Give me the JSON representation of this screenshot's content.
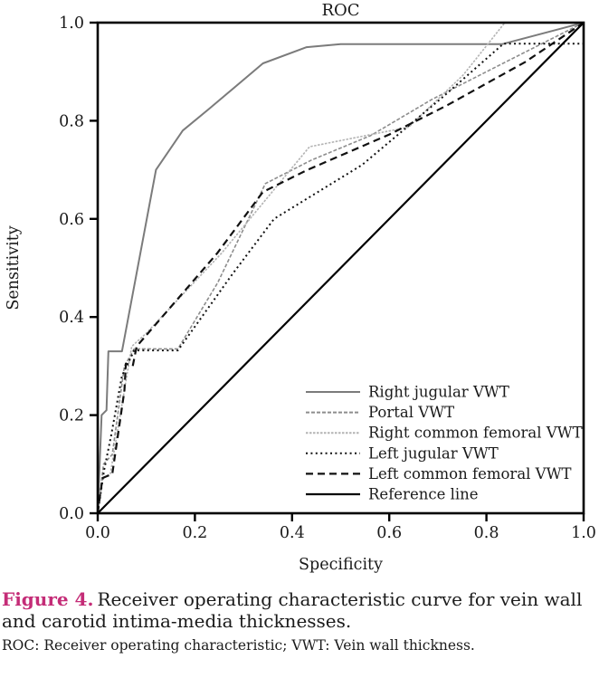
{
  "colors": {
    "accent_pink": "#c42c77",
    "axis": "#000000",
    "text": "#1a1a1a",
    "gray_dark": "#7b7b7b",
    "gray_mid": "#8d8d8d",
    "gray_light": "#b3b3b3"
  },
  "figure": {
    "title": "ROC",
    "x_label": "Specificity",
    "y_label": "Sensitivity",
    "x_ticks": [
      "0.0",
      "0.2",
      "0.4",
      "0.6",
      "0.8",
      "1.0"
    ],
    "y_ticks": [
      "0.0",
      "0.2",
      "0.4",
      "0.6",
      "0.8",
      "1.0"
    ]
  },
  "caption": {
    "label": "Figure 4.",
    "text": "Receiver operating characteristic curve for vein wall and carotid intima-media thicknesses.",
    "footnote": "ROC: Receiver operating characteristic; VWT: Vein wall thickness."
  },
  "chart_data": {
    "type": "line",
    "title": "ROC",
    "xlabel": "Specificity",
    "ylabel": "Sensitivity",
    "xlim": [
      0,
      1
    ],
    "ylim": [
      0,
      1
    ],
    "grid": false,
    "legend_position": "inside lower-right",
    "series": [
      {
        "name": "Right jugular VWT",
        "color": "#7b7b7b",
        "dash": "none",
        "width": 2,
        "points": [
          [
            0,
            0
          ],
          [
            0.008,
            0.2
          ],
          [
            0.018,
            0.21
          ],
          [
            0.022,
            0.33
          ],
          [
            0.05,
            0.33
          ],
          [
            0.12,
            0.7
          ],
          [
            0.175,
            0.78
          ],
          [
            0.23,
            0.825
          ],
          [
            0.34,
            0.917
          ],
          [
            0.43,
            0.95
          ],
          [
            0.5,
            0.956
          ],
          [
            0.832,
            0.956
          ],
          [
            1,
            1
          ]
        ]
      },
      {
        "name": "Portal VWT",
        "color": "#8d8d8d",
        "dash": "4 2",
        "width": 1.6,
        "points": [
          [
            0,
            0
          ],
          [
            0.012,
            0.1
          ],
          [
            0.03,
            0.12
          ],
          [
            0.055,
            0.3
          ],
          [
            0.075,
            0.335
          ],
          [
            0.165,
            0.335
          ],
          [
            0.247,
            0.47
          ],
          [
            0.345,
            0.672
          ],
          [
            0.44,
            0.72
          ],
          [
            0.562,
            0.77
          ],
          [
            0.687,
            0.843
          ],
          [
            0.85,
            0.925
          ],
          [
            1,
            1
          ]
        ]
      },
      {
        "name": "Right common femoral VWT",
        "color": "#b3b3b3",
        "dash": "2.5 1.5",
        "width": 1.6,
        "points": [
          [
            0,
            0
          ],
          [
            0.01,
            0.07
          ],
          [
            0.026,
            0.081
          ],
          [
            0.07,
            0.34
          ],
          [
            0.1,
            0.367
          ],
          [
            0.255,
            0.53
          ],
          [
            0.39,
            0.692
          ],
          [
            0.436,
            0.747
          ],
          [
            0.64,
            0.787
          ],
          [
            0.752,
            0.893
          ],
          [
            0.838,
            1.0
          ],
          [
            1,
            1
          ]
        ]
      },
      {
        "name": "Left jugular VWT",
        "color": "#111111",
        "dash": "2 3.4",
        "width": 2,
        "points": [
          [
            0,
            0
          ],
          [
            0.013,
            0.087
          ],
          [
            0.028,
            0.16
          ],
          [
            0.05,
            0.28
          ],
          [
            0.075,
            0.332
          ],
          [
            0.165,
            0.332
          ],
          [
            0.277,
            0.487
          ],
          [
            0.363,
            0.6
          ],
          [
            0.544,
            0.71
          ],
          [
            0.711,
            0.849
          ],
          [
            0.835,
            0.957
          ],
          [
            1,
            0.957
          ]
        ]
      },
      {
        "name": "Left common femoral VWT",
        "color": "#111111",
        "dash": "8 5",
        "width": 2.2,
        "points": [
          [
            0,
            0
          ],
          [
            0.004,
            0.03
          ],
          [
            0.01,
            0.072
          ],
          [
            0.03,
            0.08
          ],
          [
            0.055,
            0.25
          ],
          [
            0.058,
            0.305
          ],
          [
            0.072,
            0.3
          ],
          [
            0.08,
            0.34
          ],
          [
            0.246,
            0.53
          ],
          [
            0.34,
            0.655
          ],
          [
            0.432,
            0.7
          ],
          [
            0.6,
            0.772
          ],
          [
            0.72,
            0.832
          ],
          [
            0.88,
            0.92
          ],
          [
            1,
            1
          ]
        ]
      },
      {
        "name": "Reference line",
        "color": "#000000",
        "dash": "none",
        "width": 2.2,
        "points": [
          [
            0,
            0
          ],
          [
            1,
            1
          ]
        ]
      }
    ]
  }
}
